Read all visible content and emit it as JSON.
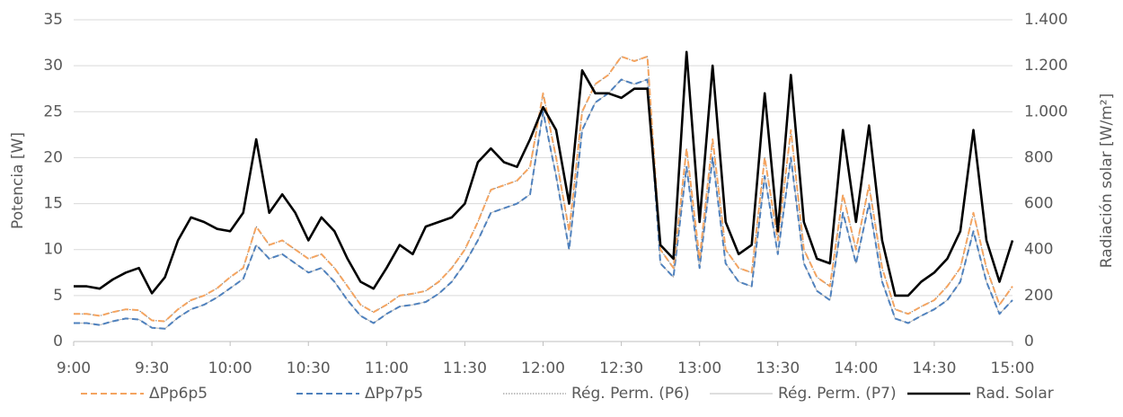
{
  "chart_data": {
    "type": "line",
    "x": [
      "9:00",
      "9:05",
      "9:10",
      "9:15",
      "9:20",
      "9:25",
      "9:30",
      "9:35",
      "9:40",
      "9:45",
      "9:50",
      "9:55",
      "10:00",
      "10:05",
      "10:10",
      "10:15",
      "10:20",
      "10:25",
      "10:30",
      "10:35",
      "10:40",
      "10:45",
      "10:50",
      "10:55",
      "11:00",
      "11:05",
      "11:10",
      "11:15",
      "11:20",
      "11:25",
      "11:30",
      "11:35",
      "11:40",
      "11:45",
      "11:50",
      "11:55",
      "12:00",
      "12:05",
      "12:10",
      "12:15",
      "12:20",
      "12:25",
      "12:30",
      "12:35",
      "12:40",
      "12:45",
      "12:50",
      "12:55",
      "13:00",
      "13:05",
      "13:10",
      "13:15",
      "13:20",
      "13:25",
      "13:30",
      "13:35",
      "13:40",
      "13:45",
      "13:50",
      "13:55",
      "14:00",
      "14:05",
      "14:10",
      "14:15",
      "14:20",
      "14:25",
      "14:30",
      "14:35",
      "14:40",
      "14:45",
      "14:50",
      "14:55",
      "15:00"
    ],
    "xticks": [
      "9:00",
      "9:30",
      "10:00",
      "10:30",
      "11:00",
      "11:30",
      "12:00",
      "12:30",
      "13:00",
      "13:30",
      "14:00",
      "14:30",
      "15:00"
    ],
    "ylabel": "Potencia [W]",
    "y2label": "Radiación solar [W/m²]",
    "ylim": [
      0,
      35
    ],
    "yticks": [
      0,
      5,
      10,
      15,
      20,
      25,
      30,
      35
    ],
    "y2lim": [
      0,
      1400
    ],
    "y2ticks": [
      0,
      200,
      400,
      600,
      800,
      {
        "value": 1000,
        "label": "1.000"
      },
      {
        "value": 1200,
        "label": "1.200"
      },
      {
        "value": 1400,
        "label": "1.400"
      }
    ],
    "grid": true,
    "legend": "bottom",
    "series": [
      {
        "name": "ΔPp6p5",
        "color": "#f4a460",
        "dash": "dashed",
        "values": [
          3,
          3,
          2.8,
          3.2,
          3.5,
          3.4,
          2.3,
          2.2,
          3.5,
          4.5,
          5,
          5.8,
          7,
          8,
          12.5,
          10.5,
          11,
          10,
          9,
          9.5,
          8,
          6,
          4,
          3.2,
          4,
          5,
          5.2,
          5.5,
          6.5,
          8,
          10,
          13,
          16.5,
          17,
          17.5,
          19,
          27,
          20,
          12,
          25,
          28,
          29,
          31,
          30.5,
          31,
          10,
          8,
          21,
          9,
          22,
          10,
          8,
          7.5,
          20,
          11,
          23,
          10,
          7,
          6,
          16,
          10,
          17,
          8,
          3.5,
          3,
          3.8,
          4.5,
          6,
          8,
          14,
          8,
          4,
          6
        ]
      },
      {
        "name": "ΔPp7p5",
        "color": "#4f81bd",
        "dash": "dashed",
        "values": [
          2,
          2,
          1.8,
          2.2,
          2.5,
          2.4,
          1.5,
          1.4,
          2.6,
          3.5,
          4,
          4.8,
          5.8,
          6.8,
          10.5,
          9,
          9.5,
          8.5,
          7.5,
          8,
          6.5,
          4.5,
          2.8,
          2,
          3,
          3.8,
          4,
          4.3,
          5.2,
          6.5,
          8.5,
          11,
          14,
          14.5,
          15,
          16,
          25,
          18,
          10,
          23,
          26,
          27,
          28.5,
          28,
          28.5,
          8.5,
          7,
          19,
          8,
          20,
          8.5,
          6.5,
          6,
          18,
          9.5,
          20,
          8.5,
          5.5,
          4.5,
          14,
          8.5,
          15,
          6.5,
          2.5,
          2,
          2.8,
          3.5,
          4.5,
          6.5,
          12,
          6.5,
          3,
          4.5
        ]
      },
      {
        "name": "Rég. Perm. (P6)",
        "color": "#7f7f7f",
        "dash": "dotted",
        "values": [
          3,
          3,
          2.8,
          3.2,
          3.5,
          3.4,
          2.3,
          2.2,
          3.5,
          4.5,
          5,
          5.8,
          7,
          8,
          12.5,
          10.5,
          11,
          10,
          9,
          9.5,
          8,
          6,
          4,
          3.2,
          4,
          5,
          5.2,
          5.5,
          6.5,
          8,
          10,
          13,
          16.5,
          17,
          17.5,
          19,
          27,
          20,
          12,
          25,
          28,
          29,
          31,
          30.5,
          31,
          10,
          8,
          21,
          9,
          22,
          10,
          8,
          7.5,
          20,
          11,
          23,
          10,
          7,
          6,
          16,
          10,
          17,
          8,
          3.5,
          3,
          3.8,
          4.5,
          6,
          8,
          14,
          8,
          4,
          6
        ]
      },
      {
        "name": "Rég. Perm. (P7)",
        "color": "#a6a6a6",
        "dash": "solid-thin",
        "values": [
          2,
          2,
          1.8,
          2.2,
          2.5,
          2.4,
          1.5,
          1.4,
          2.6,
          3.5,
          4,
          4.8,
          5.8,
          6.8,
          10.5,
          9,
          9.5,
          8.5,
          7.5,
          8,
          6.5,
          4.5,
          2.8,
          2,
          3,
          3.8,
          4,
          4.3,
          5.2,
          6.5,
          8.5,
          11,
          14,
          14.5,
          15,
          16,
          25,
          18,
          10,
          23,
          26,
          27,
          28.5,
          28,
          28.5,
          8.5,
          7,
          19,
          8,
          20,
          8.5,
          6.5,
          6,
          18,
          9.5,
          20,
          8.5,
          5.5,
          4.5,
          14,
          8.5,
          15,
          6.5,
          2.5,
          2,
          2.8,
          3.5,
          4.5,
          6.5,
          12,
          6.5,
          3,
          4.5
        ]
      },
      {
        "name": "Rad. Solar",
        "color": "#000000",
        "dash": "solid",
        "axis": "y2",
        "values": [
          240,
          240,
          230,
          270,
          300,
          320,
          210,
          280,
          440,
          540,
          520,
          490,
          480,
          560,
          880,
          560,
          640,
          560,
          440,
          540,
          480,
          360,
          260,
          230,
          320,
          420,
          380,
          500,
          520,
          540,
          600,
          780,
          840,
          780,
          760,
          880,
          1020,
          920,
          600,
          1180,
          1080,
          1080,
          1060,
          1100,
          1100,
          420,
          360,
          1260,
          520,
          1200,
          520,
          380,
          420,
          1080,
          480,
          1160,
          520,
          360,
          340,
          920,
          520,
          940,
          440,
          200,
          200,
          260,
          300,
          360,
          480,
          920,
          440,
          260,
          440
        ]
      }
    ]
  }
}
